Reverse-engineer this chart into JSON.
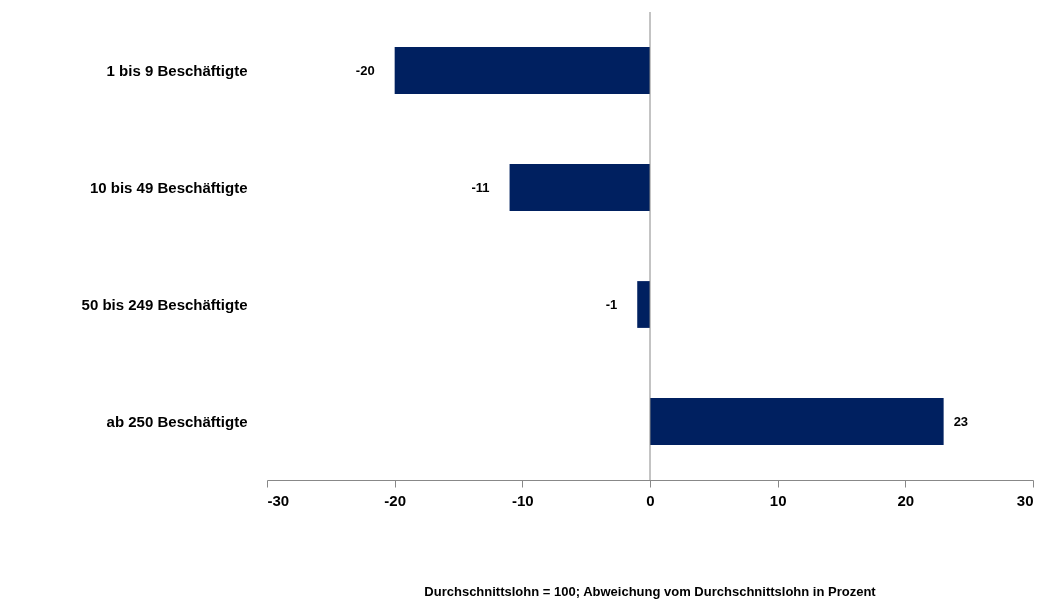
{
  "chart_data": {
    "type": "bar",
    "orientation": "horizontal",
    "categories": [
      "1 bis 9 Beschäftigte",
      "10 bis 49 Beschäftigte",
      "50 bis 249 Beschäftigte",
      "ab 250 Beschäftigte"
    ],
    "values": [
      -20,
      -11,
      -1,
      23
    ],
    "color": "#002060",
    "data_labels": true,
    "xlim": [
      -30,
      30
    ],
    "xticks": [
      -30,
      -20,
      -10,
      0,
      10,
      20,
      30
    ],
    "annotations": [
      "Durchschnittslohn = 100; Abweichung vom Durchschnittslohn in Prozent"
    ]
  }
}
